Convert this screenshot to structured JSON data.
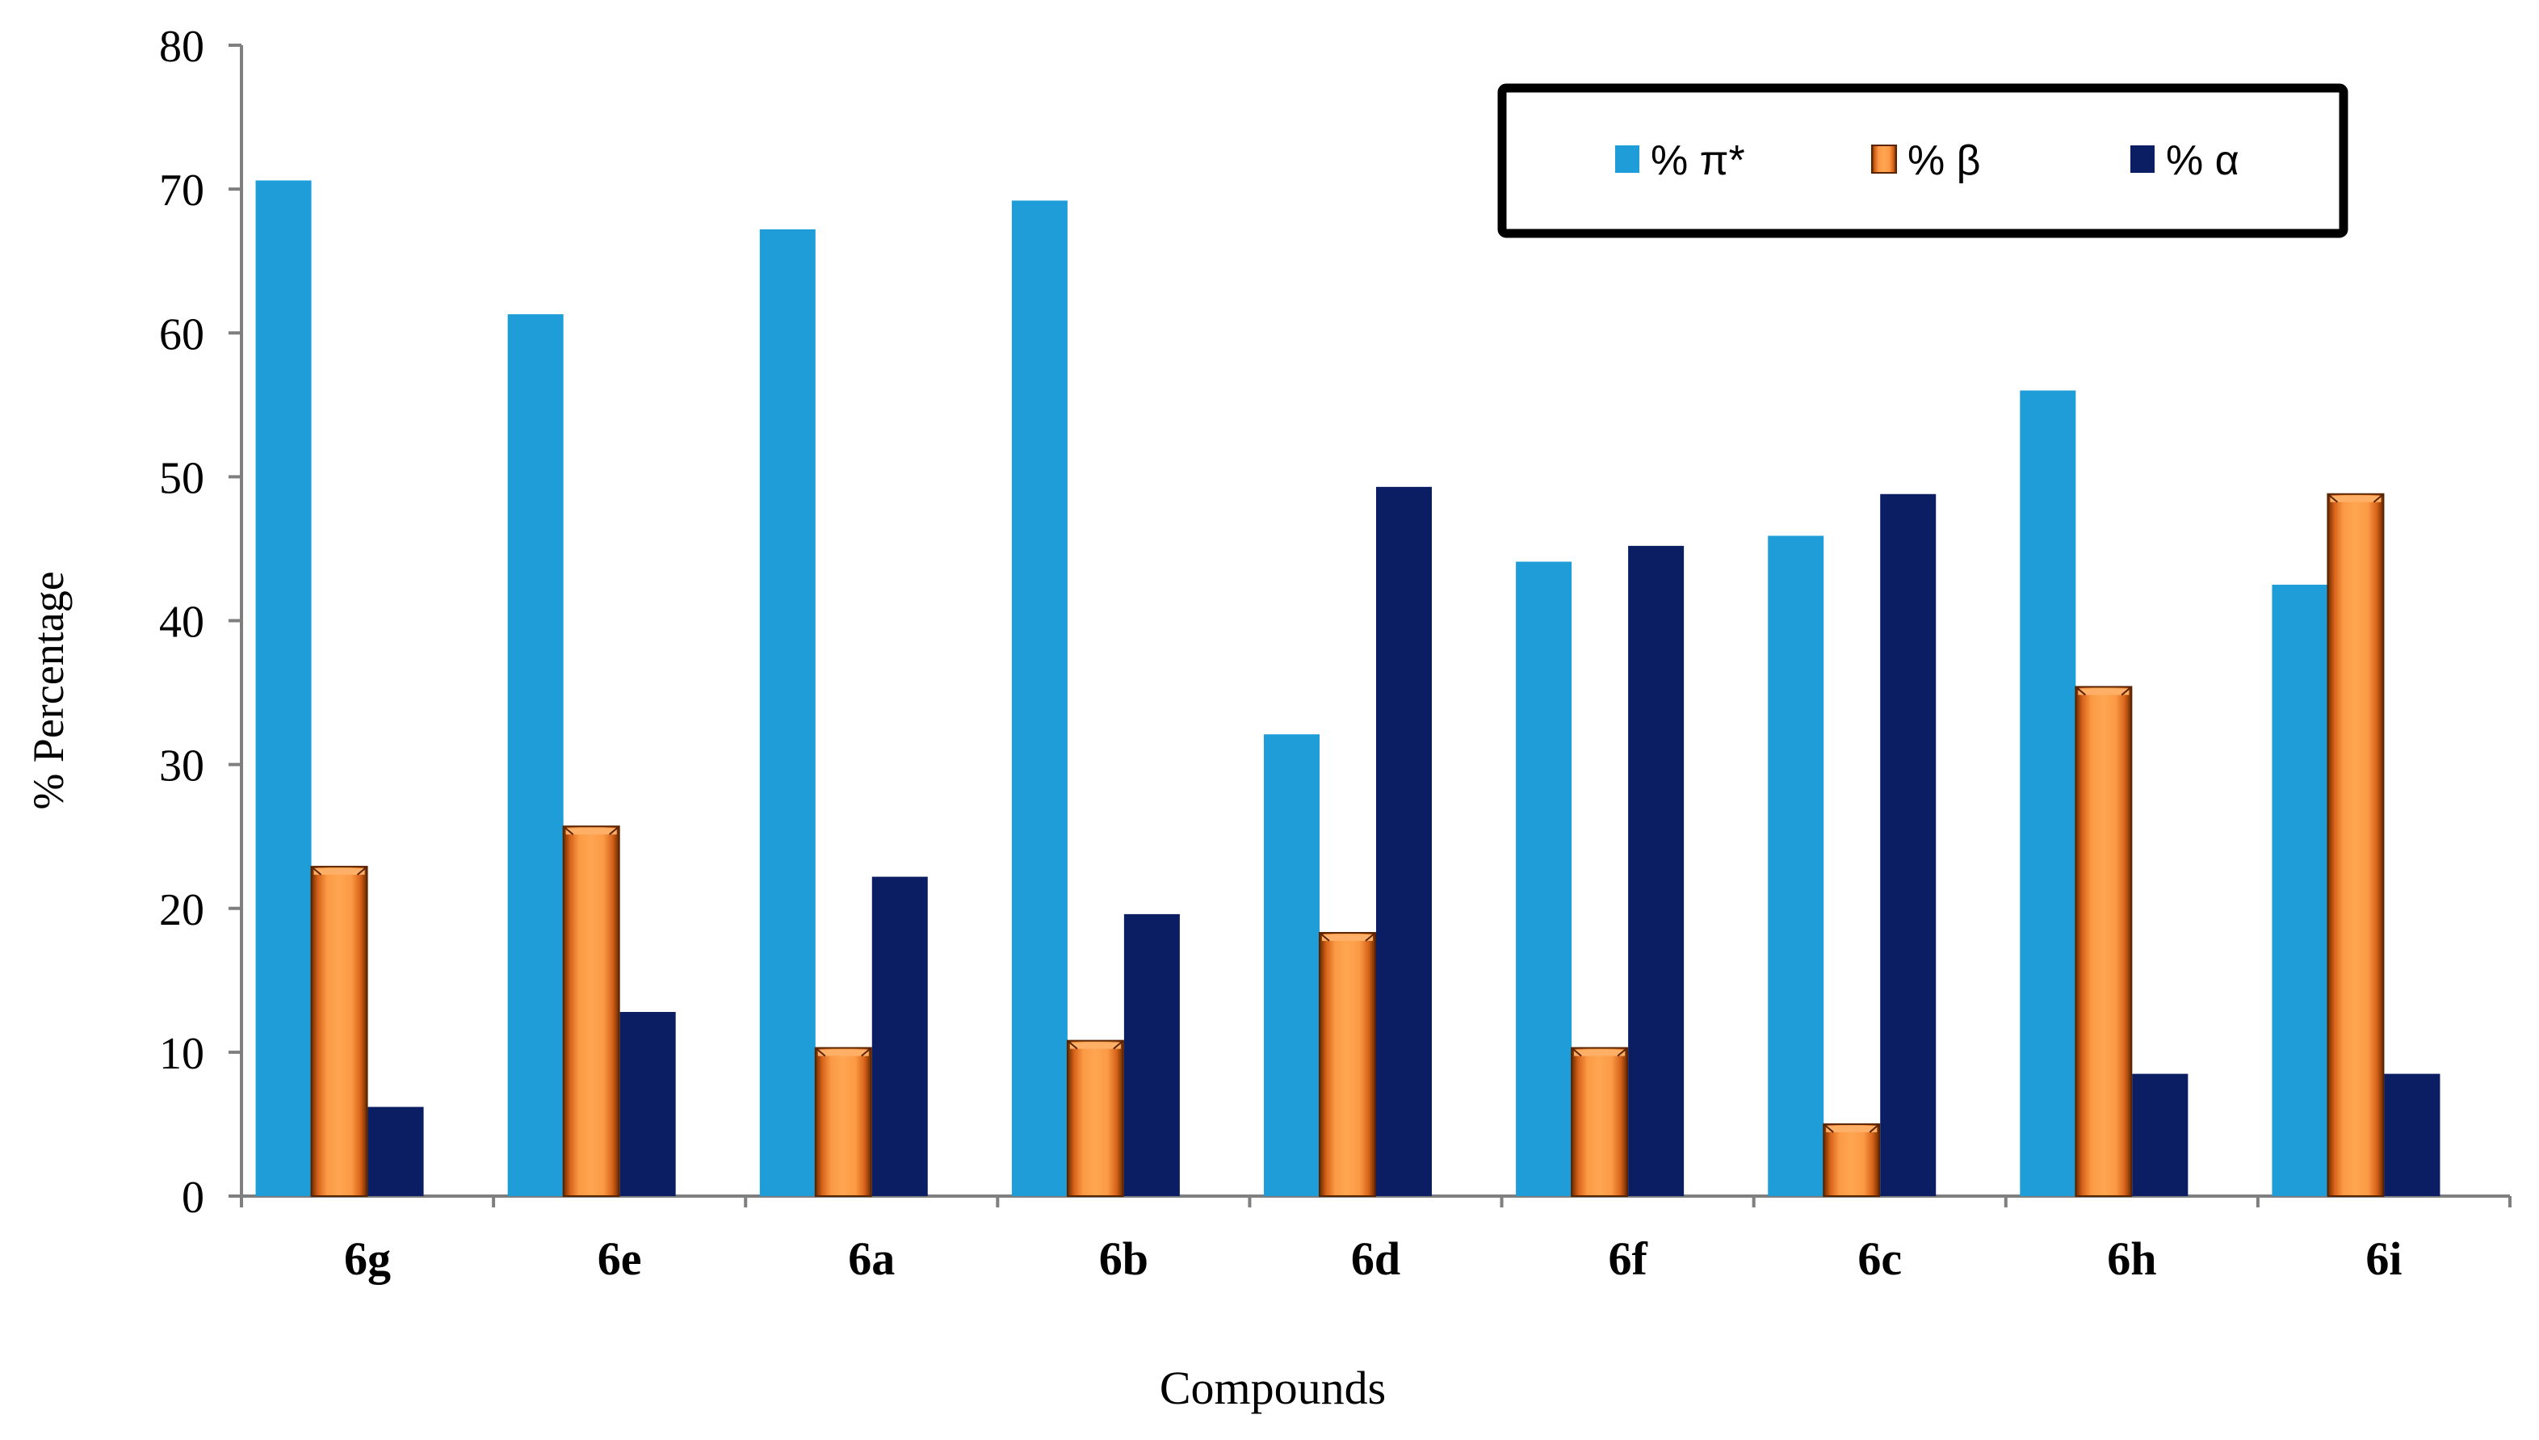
{
  "chart_data": {
    "type": "bar",
    "title": "",
    "xlabel": "Compounds",
    "ylabel": "% Percentage",
    "ylim": [
      0,
      80
    ],
    "yticks": [
      0,
      10,
      20,
      30,
      40,
      50,
      60,
      70,
      80
    ],
    "grid": false,
    "legend_position": "top-right",
    "categories": [
      "6g",
      "6e",
      "6a",
      "6b",
      "6d",
      "6f",
      "6c",
      "6h",
      "6i"
    ],
    "series": [
      {
        "name": "% π*",
        "color": "#1f9dd9",
        "style": "flat",
        "values": [
          70.6,
          61.3,
          67.2,
          69.2,
          32.1,
          44.1,
          45.9,
          56.0,
          42.5
        ]
      },
      {
        "name": "% β",
        "color": "#f7822b",
        "style": "bevel",
        "values": [
          22.9,
          25.7,
          10.3,
          10.8,
          18.3,
          10.3,
          5.0,
          35.4,
          48.8
        ]
      },
      {
        "name": "% α",
        "color": "#0b1e63",
        "style": "flat",
        "values": [
          6.2,
          12.8,
          22.2,
          19.6,
          49.3,
          45.2,
          48.8,
          8.5,
          8.5
        ]
      }
    ]
  }
}
